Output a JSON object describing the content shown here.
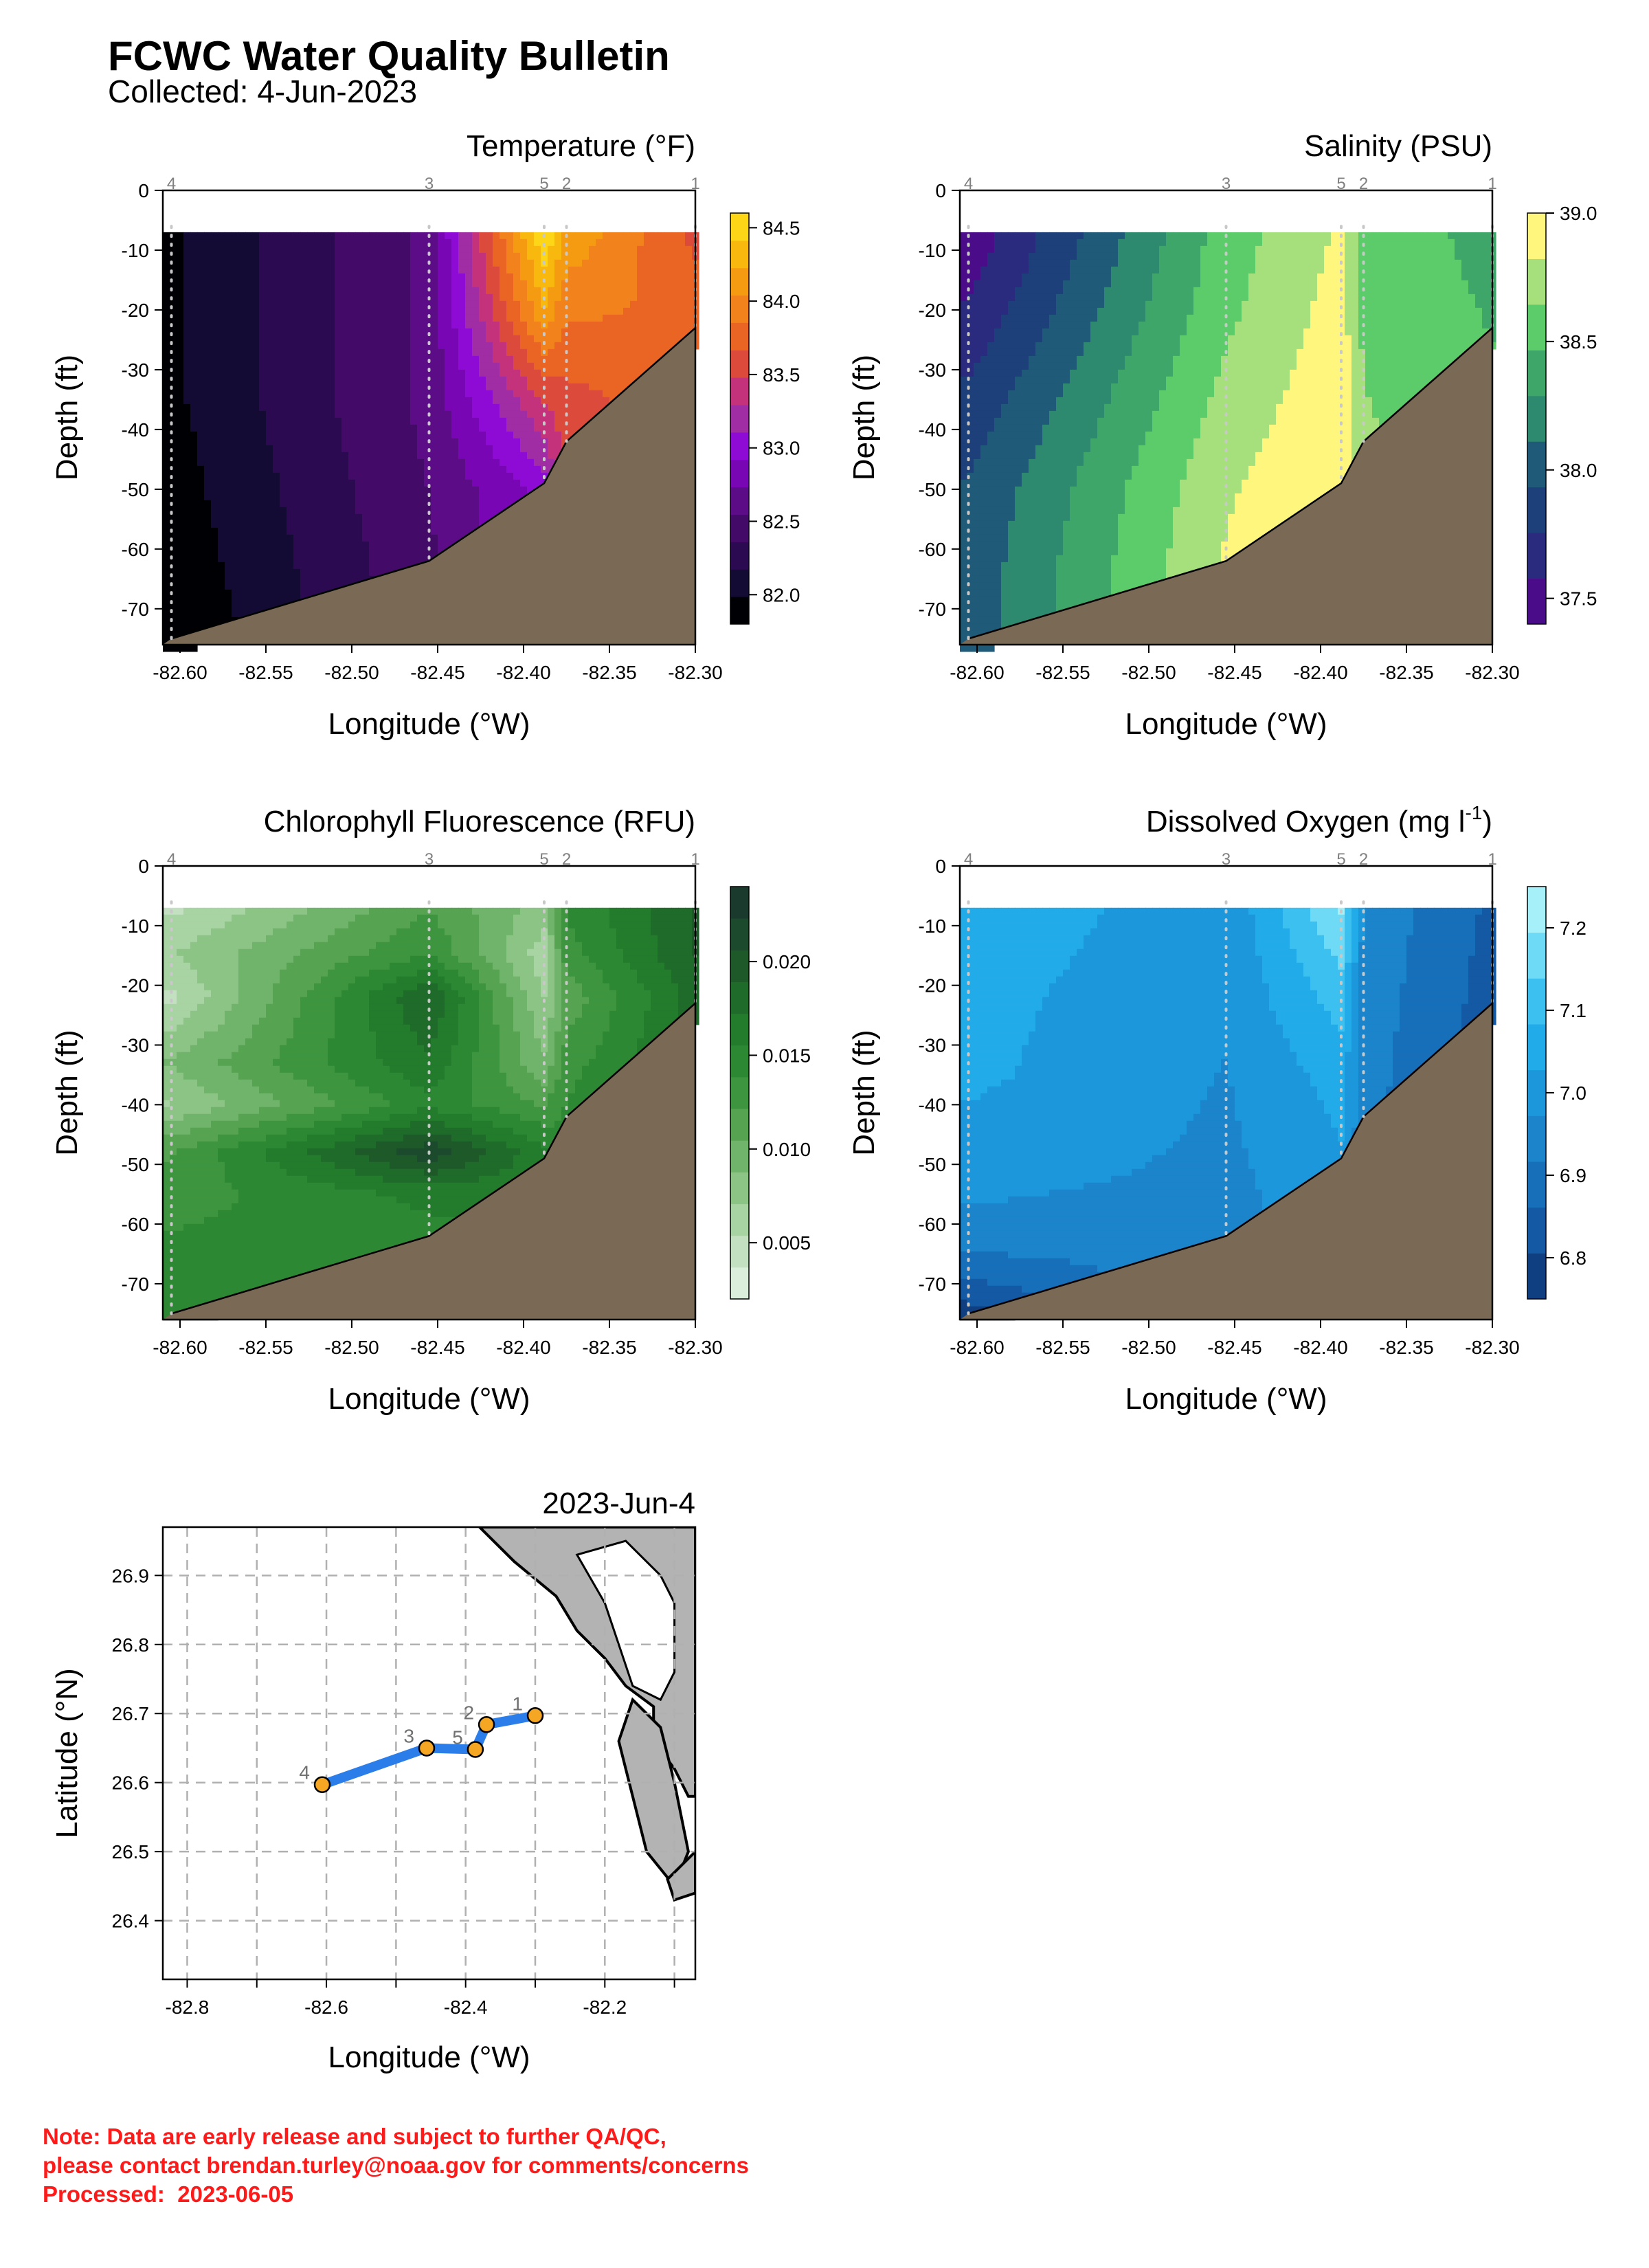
{
  "header": {
    "title": "FCWC Water Quality Bulletin",
    "collected": "Collected: 4-Jun-2023"
  },
  "note": {
    "line1": "Note: Data are early release and subject to further QA/QC,",
    "line2": "please contact brendan.turley@noaa.gov for comments/concerns",
    "line3": "Processed:  2023-06-05",
    "color": "#ff1a1a"
  },
  "chart_data": [
    {
      "type": "heatmap",
      "title": "Temperature (°F)",
      "xlabel": "Longitude (°W)",
      "ylabel": "Depth (ft)",
      "xlim": [
        -82.61,
        -82.3
      ],
      "ylim": [
        -76,
        0
      ],
      "xticks": [
        "-82.60",
        "-82.55",
        "-82.50",
        "-82.45",
        "-82.40",
        "-82.35",
        "-82.30"
      ],
      "yticks": [
        "0",
        "-10",
        "-20",
        "-30",
        "-40",
        "-50",
        "-60",
        "-70"
      ],
      "colorbar": {
        "min": 81.8,
        "max": 84.6,
        "ticks": [
          "82.0",
          "82.5",
          "83.0",
          "83.5",
          "84.0",
          "84.5"
        ],
        "colors": [
          "#000004",
          "#140b35",
          "#2b0a52",
          "#430a68",
          "#5c0c86",
          "#7806b5",
          "#8e0bd6",
          "#a12da5",
          "#c3327a",
          "#dc4a3c",
          "#ea6424",
          "#f1821c",
          "#f59b12",
          "#f9b80e",
          "#fdd617"
        ]
      },
      "stations": [
        {
          "id": "4",
          "lon": -82.605,
          "depth": -75
        },
        {
          "id": "3",
          "lon": -82.455,
          "depth": -62
        },
        {
          "id": "5",
          "lon": -82.388,
          "depth": -49
        },
        {
          "id": "2",
          "lon": -82.375,
          "depth": -42
        },
        {
          "id": "1",
          "lon": -82.3,
          "depth": -23
        }
      ],
      "profile": {
        "depths": [
          -7,
          -20,
          -35,
          -50,
          -65,
          -75
        ],
        "values": [
          [
            81.95,
            81.95,
            81.95,
            81.9,
            81.85,
            81.8
          ],
          [
            82.6,
            82.6,
            82.6,
            82.55,
            82.5,
            82.5
          ],
          [
            84.6,
            84.2,
            83.5,
            83.0,
            83.0,
            83.0
          ],
          [
            84.2,
            83.9,
            83.6,
            83.5,
            83.5,
            83.5
          ],
          [
            83.6,
            83.8,
            83.8,
            83.8,
            83.8,
            83.8
          ]
        ]
      }
    },
    {
      "type": "heatmap",
      "title": "Salinity (PSU)",
      "xlabel": "Longitude (°W)",
      "ylabel": "Depth (ft)",
      "xlim": [
        -82.61,
        -82.3
      ],
      "ylim": [
        -76,
        0
      ],
      "xticks": [
        "-82.60",
        "-82.55",
        "-82.50",
        "-82.45",
        "-82.40",
        "-82.35",
        "-82.30"
      ],
      "yticks": [
        "0",
        "-10",
        "-20",
        "-30",
        "-40",
        "-50",
        "-60",
        "-70"
      ],
      "colorbar": {
        "min": 37.4,
        "max": 39.0,
        "ticks": [
          "37.5",
          "38.0",
          "38.5",
          "39.0"
        ],
        "colors": [
          "#4b0c8a",
          "#2a2a7e",
          "#1d3f7a",
          "#1f5a78",
          "#2e8a6e",
          "#3fa66a",
          "#5ccc6a",
          "#a6e07c",
          "#fef67d"
        ]
      },
      "stations": [
        {
          "id": "4",
          "lon": -82.605,
          "depth": -75
        },
        {
          "id": "3",
          "lon": -82.455,
          "depth": -62
        },
        {
          "id": "5",
          "lon": -82.388,
          "depth": -49
        },
        {
          "id": "2",
          "lon": -82.375,
          "depth": -42
        },
        {
          "id": "1",
          "lon": -82.3,
          "depth": -23
        }
      ],
      "profile": {
        "depths": [
          -7,
          -20,
          -35,
          -50,
          -65,
          -75
        ],
        "values": [
          [
            37.45,
            37.6,
            37.8,
            37.95,
            38.0,
            38.0
          ],
          [
            38.55,
            38.6,
            38.7,
            38.8,
            38.85,
            38.85
          ],
          [
            38.85,
            38.9,
            38.95,
            39.0,
            39.0,
            39.0
          ],
          [
            38.6,
            38.6,
            38.65,
            38.7,
            38.7,
            38.7
          ],
          [
            38.4,
            38.45,
            38.5,
            38.5,
            38.5,
            38.5
          ]
        ]
      }
    },
    {
      "type": "heatmap",
      "title": "Chlorophyll Fluorescence (RFU)",
      "xlabel": "Longitude (°W)",
      "ylabel": "Depth (ft)",
      "xlim": [
        -82.61,
        -82.3
      ],
      "ylim": [
        -76,
        0
      ],
      "xticks": [
        "-82.60",
        "-82.55",
        "-82.50",
        "-82.45",
        "-82.40",
        "-82.35",
        "-82.30"
      ],
      "yticks": [
        "0",
        "-10",
        "-20",
        "-30",
        "-40",
        "-50",
        "-60",
        "-70"
      ],
      "colorbar": {
        "min": 0.002,
        "max": 0.024,
        "ticks": [
          "0.005",
          "0.010",
          "0.015",
          "0.020"
        ],
        "colors": [
          "#dbeddb",
          "#c3e1c0",
          "#a8d3a2",
          "#8cc486",
          "#6fb46a",
          "#56a452",
          "#3e953f",
          "#2d8834",
          "#237b2c",
          "#1f6b2a",
          "#1e5a29",
          "#1c4a2d",
          "#1b3a2e"
        ]
      },
      "stations": [
        {
          "id": "4",
          "lon": -82.605,
          "depth": -75
        },
        {
          "id": "3",
          "lon": -82.455,
          "depth": -62
        },
        {
          "id": "5",
          "lon": -82.388,
          "depth": -49
        },
        {
          "id": "2",
          "lon": -82.375,
          "depth": -42
        },
        {
          "id": "1",
          "lon": -82.3,
          "depth": -23
        }
      ],
      "profile": {
        "depths": [
          -7,
          -15,
          -22,
          -33,
          -40,
          -48,
          -55,
          -62,
          -70,
          -75
        ],
        "values": [
          [
            0.005,
            0.007,
            0.005,
            0.009,
            0.007,
            0.012,
            0.013,
            0.014,
            0.015,
            0.015
          ],
          [
            0.012,
            0.014,
            0.019,
            0.017,
            0.015,
            0.022,
            0.016,
            0.015,
            0.015,
            0.015
          ],
          [
            0.008,
            0.006,
            0.007,
            0.009,
            0.012,
            0.016,
            0.016,
            0.016,
            0.016,
            0.016
          ],
          [
            0.014,
            0.013,
            0.011,
            0.013,
            0.014,
            0.014,
            0.014,
            0.014,
            0.014,
            0.014
          ],
          [
            0.019,
            0.019,
            0.018,
            0.018,
            0.018,
            0.018,
            0.018,
            0.018,
            0.018,
            0.018
          ]
        ]
      }
    },
    {
      "type": "heatmap",
      "title": "Dissolved Oxygen (mg l",
      "title_sup": "-1",
      "title_end": ")",
      "xlabel": "Longitude (°W)",
      "ylabel": "Depth (ft)",
      "xlim": [
        -82.61,
        -82.3
      ],
      "ylim": [
        -76,
        0
      ],
      "xticks": [
        "-82.60",
        "-82.55",
        "-82.50",
        "-82.45",
        "-82.40",
        "-82.35",
        "-82.30"
      ],
      "yticks": [
        "0",
        "-10",
        "-20",
        "-30",
        "-40",
        "-50",
        "-60",
        "-70"
      ],
      "colorbar": {
        "min": 6.75,
        "max": 7.25,
        "ticks": [
          "6.8",
          "6.9",
          "7.0",
          "7.1",
          "7.2"
        ],
        "colors": [
          "#0f3f80",
          "#1459a3",
          "#176fba",
          "#1b84cb",
          "#1c97dc",
          "#22abe9",
          "#3cc0f0",
          "#6edaf5",
          "#a6f0f9"
        ]
      },
      "stations": [
        {
          "id": "4",
          "lon": -82.605,
          "depth": -75
        },
        {
          "id": "3",
          "lon": -82.455,
          "depth": -62
        },
        {
          "id": "5",
          "lon": -82.388,
          "depth": -49
        },
        {
          "id": "2",
          "lon": -82.375,
          "depth": -42
        },
        {
          "id": "1",
          "lon": -82.3,
          "depth": -23
        }
      ],
      "profile": {
        "depths": [
          -7,
          -20,
          -35,
          -50,
          -62,
          -70,
          -75
        ],
        "values": [
          [
            7.08,
            7.05,
            7.04,
            7.0,
            6.95,
            6.85,
            6.78
          ],
          [
            6.98,
            6.98,
            6.97,
            6.96,
            6.95,
            6.95,
            6.95
          ],
          [
            7.2,
            7.12,
            7.05,
            7.02,
            7.0,
            7.0,
            7.0
          ],
          [
            6.96,
            6.95,
            6.94,
            6.93,
            6.92,
            6.92,
            6.92
          ],
          [
            6.85,
            6.84,
            6.83,
            6.83,
            6.83,
            6.83,
            6.83
          ]
        ]
      }
    },
    {
      "type": "scatter",
      "title": "2023-Jun-4",
      "xlabel": "Longitude (°W)",
      "ylabel": "Latitude (°N)",
      "xlim": [
        -82.835,
        -82.07
      ],
      "ylim": [
        26.315,
        26.97
      ],
      "xticks": [
        "-82.8",
        "-82.6",
        "-82.4",
        "-82.2"
      ],
      "yticks": [
        "26.4",
        "26.5",
        "26.6",
        "26.7",
        "26.8",
        "26.9"
      ],
      "grid": true,
      "track_color": "#2b7de9",
      "marker_color": "#f5a623",
      "land_color": "#b3b3b3",
      "points": [
        {
          "id": "1",
          "x": -82.3,
          "y": 26.697
        },
        {
          "id": "2",
          "x": -82.37,
          "y": 26.684
        },
        {
          "id": "5",
          "x": -82.386,
          "y": 26.648
        },
        {
          "id": "3",
          "x": -82.456,
          "y": 26.65
        },
        {
          "id": "4",
          "x": -82.606,
          "y": 26.597
        }
      ]
    }
  ]
}
